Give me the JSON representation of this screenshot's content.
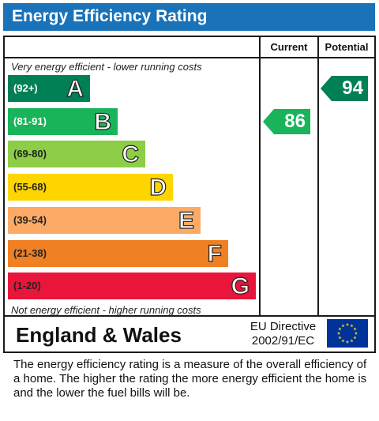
{
  "header": {
    "title": "Energy Efficiency Rating"
  },
  "columns": {
    "current": "Current",
    "potential": "Potential"
  },
  "captions": {
    "top": "Very energy efficient - lower running costs",
    "bottom": "Not energy efficient - higher running costs"
  },
  "chart_data": {
    "type": "bar",
    "title": "Energy Efficiency Rating",
    "bands": [
      {
        "letter": "A",
        "range": "(92+)",
        "color": "#008054",
        "text_color": "#ffffff"
      },
      {
        "letter": "B",
        "range": "(81-91)",
        "color": "#19b459",
        "text_color": "#ffffff"
      },
      {
        "letter": "C",
        "range": "(69-80)",
        "color": "#8dce46",
        "text_color": "#222222"
      },
      {
        "letter": "D",
        "range": "(55-68)",
        "color": "#ffd500",
        "text_color": "#222222"
      },
      {
        "letter": "E",
        "range": "(39-54)",
        "color": "#fcaa65",
        "text_color": "#222222"
      },
      {
        "letter": "F",
        "range": "(21-38)",
        "color": "#ef8023",
        "text_color": "#222222"
      },
      {
        "letter": "G",
        "range": "(1-20)",
        "color": "#e9153b",
        "text_color": "#222222"
      }
    ],
    "current": {
      "value": 86,
      "band": "B",
      "color": "#19b459"
    },
    "potential": {
      "value": 94,
      "band": "A",
      "color": "#008054"
    }
  },
  "footer": {
    "region": "England & Wales",
    "directive_line1": "EU Directive",
    "directive_line2": "2002/91/EC",
    "flag_icon": "eu-flag-icon"
  },
  "description": "The energy efficiency rating is a measure of the overall efficiency of a home.  The higher the rating the more energy efficient the home is and the lower the fuel bills will be."
}
